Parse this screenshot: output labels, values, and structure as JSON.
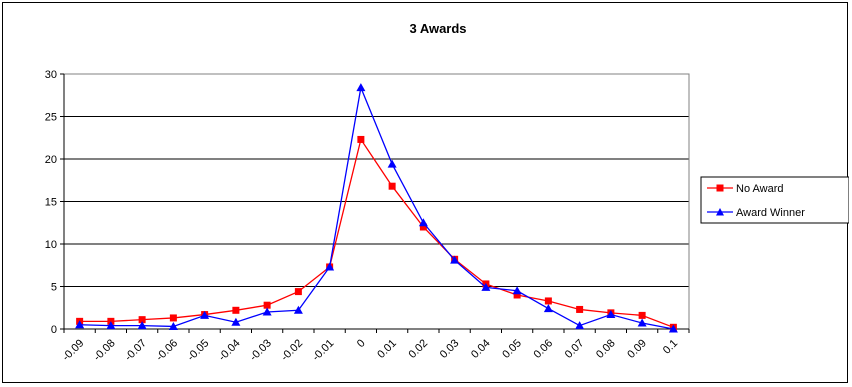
{
  "chart_data": {
    "type": "line",
    "title": "3 Awards",
    "xlabel": "",
    "ylabel": "",
    "categories": [
      "-0.09",
      "-0.08",
      "-0.07",
      "-0.06",
      "-0.05",
      "-0.04",
      "-0.03",
      "-0.02",
      "-0.01",
      "0",
      "0.01",
      "0.02",
      "0.03",
      "0.04",
      "0.05",
      "0.06",
      "0.07",
      "0.08",
      "0.09",
      "0.1"
    ],
    "ylim": [
      0,
      30
    ],
    "yticks": [
      0,
      5,
      10,
      15,
      20,
      25,
      30
    ],
    "grid": true,
    "legend_position": "right",
    "series": [
      {
        "name": "No Award",
        "color": "#ff0000",
        "marker": "square",
        "values": [
          0.9,
          0.9,
          1.1,
          1.3,
          1.7,
          2.2,
          2.8,
          4.4,
          7.3,
          22.3,
          16.8,
          12.0,
          8.2,
          5.3,
          4.0,
          3.3,
          2.3,
          1.9,
          1.6,
          0.2
        ]
      },
      {
        "name": "Award Winner",
        "color": "#0000ff",
        "marker": "triangle",
        "values": [
          0.5,
          0.4,
          0.4,
          0.3,
          1.6,
          0.8,
          2.0,
          2.2,
          7.3,
          28.4,
          19.4,
          12.5,
          8.1,
          4.9,
          4.5,
          2.4,
          0.4,
          1.7,
          0.7,
          0.0
        ]
      }
    ]
  }
}
